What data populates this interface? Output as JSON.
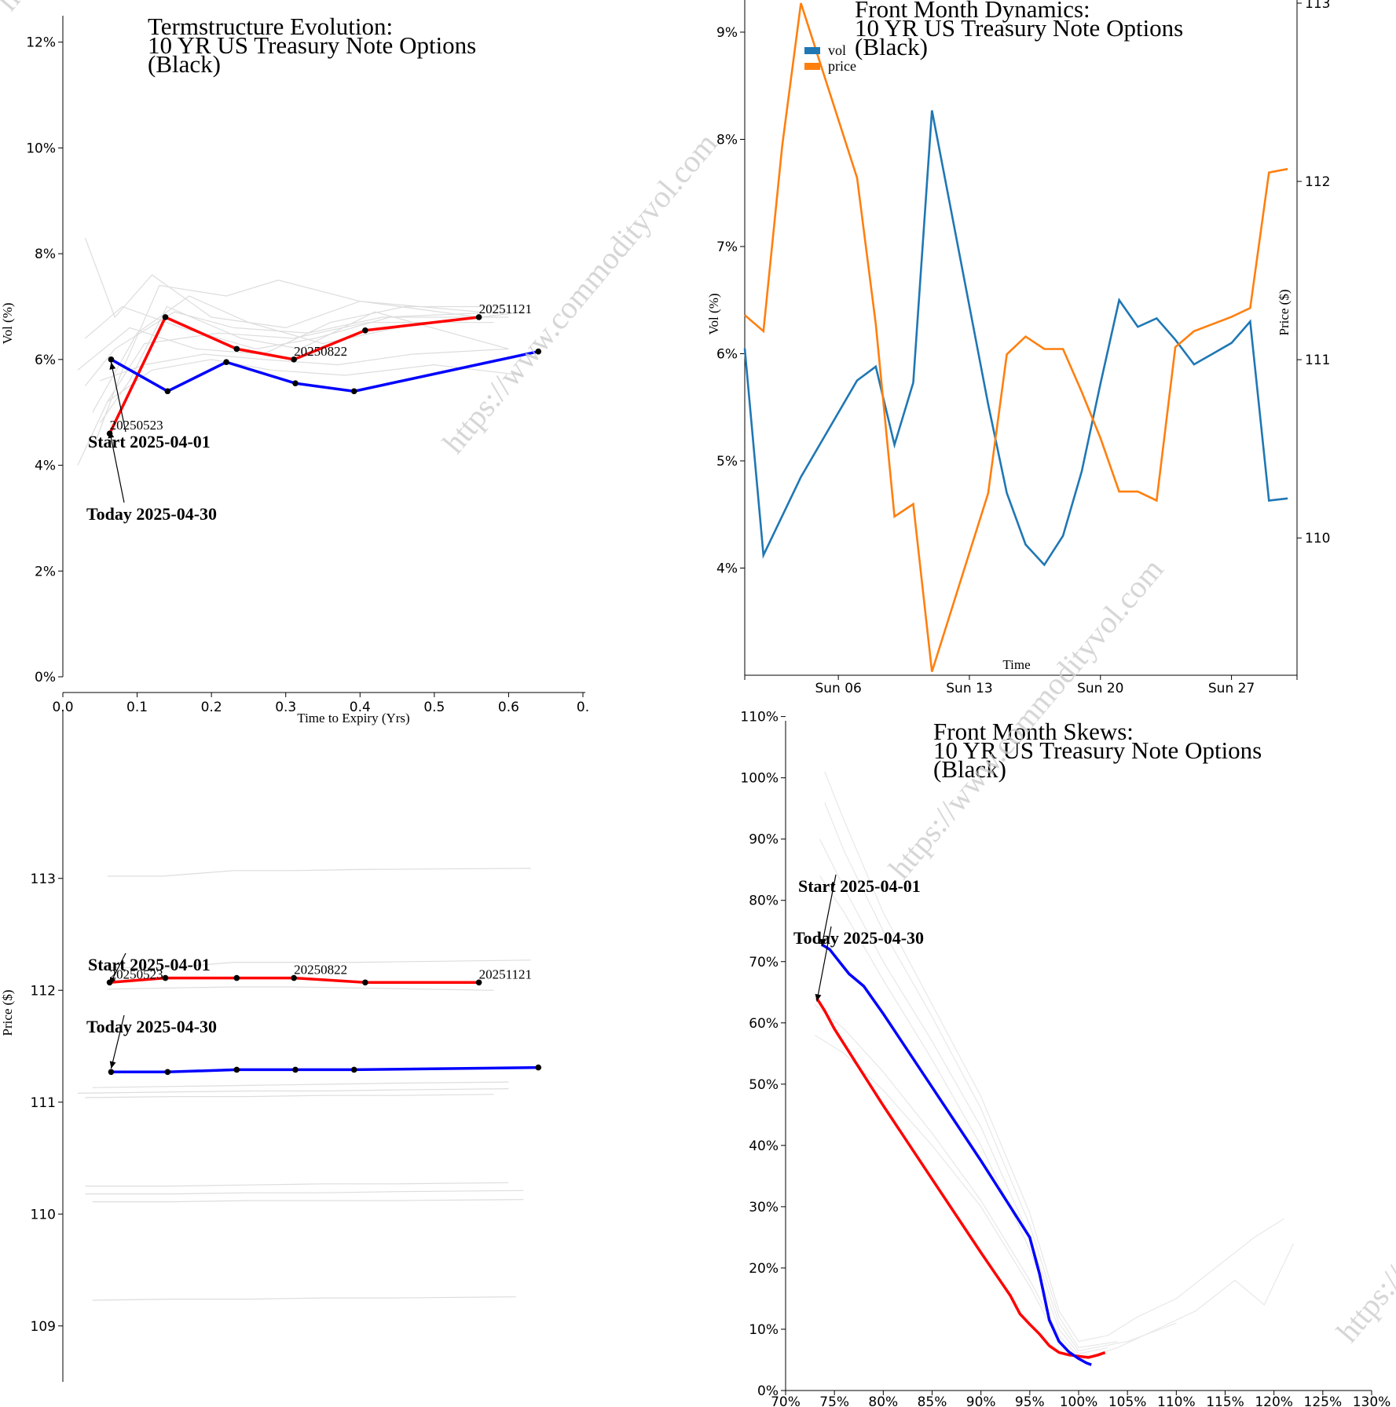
{
  "watermark": {
    "text": "https://www.commodityvol.com",
    "color": "#cccccc"
  },
  "colors": {
    "start": "#ff0000",
    "today": "#0000ff",
    "history": "#dddddd",
    "vol": "#1f77b4",
    "price": "#ff7f0e"
  },
  "chart_data": [
    {
      "id": "termstructure-vol",
      "type": "line",
      "title": [
        "Termstructure Evolution:",
        "10 YR US Treasury Note Options",
        "(Black)"
      ],
      "xlabel": "Time to Expiry (Yrs)",
      "ylabel": "Vol (%)",
      "xlim": [
        0,
        0.7
      ],
      "ylim": [
        0,
        12.5
      ],
      "xticks": [
        0,
        0.1,
        0.2,
        0.3,
        0.4,
        0.5,
        0.6,
        0.7
      ],
      "xtick_labels": [
        "0.0",
        "0.1",
        "0.2",
        "0.3",
        "0.4",
        "0.5",
        "0.6",
        "0."
      ],
      "yticks": [
        0,
        2,
        4,
        6,
        8,
        10,
        12
      ],
      "ytick_labels": [
        "0%",
        "2%",
        "4%",
        "6%",
        "8%",
        "10%",
        "12%"
      ],
      "series": [
        {
          "name": "Start 2025-04-01",
          "role": "start",
          "x": [
            0.063,
            0.138,
            0.234,
            0.311,
            0.407,
            0.56
          ],
          "y": [
            4.6,
            6.8,
            6.2,
            6.0,
            6.55,
            6.8
          ]
        },
        {
          "name": "Today 2025-04-30",
          "role": "today",
          "x": [
            0.065,
            0.141,
            0.22,
            0.313,
            0.392,
            0.64
          ],
          "y": [
            6.0,
            5.4,
            5.95,
            5.55,
            5.4,
            6.15
          ]
        }
      ],
      "history": [
        {
          "x": [
            0.03,
            0.07,
            0.12,
            0.2,
            0.3,
            0.4,
            0.56
          ],
          "y": [
            8.3,
            6.8,
            7.6,
            6.8,
            6.6,
            7.1,
            6.9
          ]
        },
        {
          "x": [
            0.04,
            0.08,
            0.13,
            0.22,
            0.29,
            0.4,
            0.56
          ],
          "y": [
            4.3,
            5.8,
            7.4,
            7.2,
            7.5,
            7.1,
            6.8
          ]
        },
        {
          "x": [
            0.05,
            0.09,
            0.14,
            0.24,
            0.32,
            0.42,
            0.6
          ],
          "y": [
            4.8,
            5.6,
            7.0,
            6.4,
            6.2,
            6.9,
            6.2
          ]
        },
        {
          "x": [
            0.02,
            0.06,
            0.11,
            0.21,
            0.31,
            0.41,
            0.58
          ],
          "y": [
            4.0,
            5.2,
            6.3,
            6.5,
            6.4,
            6.7,
            6.7
          ]
        },
        {
          "x": [
            0.03,
            0.07,
            0.15,
            0.23,
            0.33,
            0.43,
            0.6
          ],
          "y": [
            5.5,
            6.2,
            6.9,
            6.6,
            6.5,
            6.8,
            6.9
          ]
        },
        {
          "x": [
            0.04,
            0.1,
            0.17,
            0.25,
            0.35,
            0.45,
            0.62
          ],
          "y": [
            5.0,
            6.5,
            7.2,
            6.7,
            6.3,
            6.6,
            6.9
          ]
        },
        {
          "x": [
            0.05,
            0.11,
            0.19,
            0.27,
            0.37,
            0.47,
            0.6
          ],
          "y": [
            5.6,
            5.9,
            6.1,
            6.0,
            5.9,
            6.1,
            6.2
          ]
        },
        {
          "x": [
            0.06,
            0.12,
            0.2,
            0.28,
            0.38,
            0.5,
            0.62
          ],
          "y": [
            5.2,
            5.8,
            6.0,
            5.8,
            5.7,
            5.9,
            5.7
          ]
        },
        {
          "x": [
            0.03,
            0.08,
            0.16,
            0.26,
            0.34,
            0.44,
            0.6
          ],
          "y": [
            6.4,
            7.0,
            6.6,
            6.2,
            6.4,
            6.8,
            6.8
          ]
        },
        {
          "x": [
            0.02,
            0.09,
            0.18,
            0.27,
            0.36,
            0.46,
            0.59
          ],
          "y": [
            5.8,
            6.6,
            6.2,
            6.1,
            6.7,
            7.0,
            7.0
          ]
        }
      ],
      "point_labels": [
        {
          "text": "20250523",
          "x": 0.063,
          "y": 4.6
        },
        {
          "text": "20250822",
          "x": 0.311,
          "y": 6.0
        },
        {
          "text": "20251121",
          "x": 0.56,
          "y": 6.8
        }
      ],
      "annotations": [
        {
          "text": "Start 2025-04-01",
          "target_x": 0.065,
          "target_y": 5.95
        },
        {
          "text": "Today 2025-04-30",
          "target_x": 0.063,
          "target_y": 4.65
        }
      ]
    },
    {
      "id": "front-month-dynamics",
      "type": "line",
      "title": [
        "Front Month Dynamics:",
        "10 YR US Treasury Note Options",
        "(Black)"
      ],
      "xlabel": "Time",
      "ylabel": "Vol (%)",
      "ylabel_right": "Price ($)",
      "x_domain_days": [
        1,
        30.5
      ],
      "xticks_days": [
        6,
        13,
        20,
        27
      ],
      "xtick_labels": [
        "Sun 06",
        "Sun 13",
        "Sun 20",
        "Sun 27"
      ],
      "ylim": [
        3.0,
        9.3
      ],
      "yticks": [
        4,
        5,
        6,
        7,
        8,
        9
      ],
      "ytick_labels": [
        "4%",
        "5%",
        "6%",
        "7%",
        "8%",
        "9%"
      ],
      "ylim_right": [
        109.23,
        113.0
      ],
      "yticks_right": [
        110,
        111,
        112,
        113
      ],
      "legend": [
        "vol",
        "price"
      ],
      "series": [
        {
          "name": "vol",
          "axis": "left",
          "x": [
            1,
            2,
            4,
            7,
            8,
            9,
            10,
            11,
            14,
            15,
            16,
            17,
            18,
            19,
            20,
            21,
            22,
            23,
            24,
            25,
            26,
            27,
            28,
            29,
            30
          ],
          "y": [
            6.05,
            4.12,
            4.85,
            5.75,
            5.88,
            5.15,
            5.73,
            8.27,
            5.53,
            4.7,
            4.22,
            4.03,
            4.3,
            4.9,
            5.72,
            6.5,
            6.25,
            6.33,
            6.13,
            5.9,
            6.0,
            6.1,
            6.3,
            4.63,
            4.65
          ]
        },
        {
          "name": "price",
          "axis": "right",
          "x": [
            1,
            2,
            3,
            4,
            7,
            8,
            9,
            10,
            11,
            14,
            15,
            16,
            17,
            18,
            19,
            20,
            21,
            22,
            23,
            24,
            25,
            26,
            27,
            28,
            29,
            30
          ],
          "y": [
            111.25,
            111.16,
            112.2,
            113.0,
            112.02,
            111.2,
            110.12,
            110.19,
            109.25,
            110.25,
            111.03,
            111.13,
            111.06,
            111.06,
            110.82,
            110.56,
            110.26,
            110.26,
            110.21,
            111.07,
            111.16,
            111.2,
            111.24,
            111.29,
            112.05,
            112.07
          ]
        }
      ]
    },
    {
      "id": "termstructure-price",
      "type": "line",
      "ylabel": "Price ($)",
      "xlim": [
        0,
        0.7
      ],
      "ylim": [
        108.5,
        114.5
      ],
      "yticks": [
        109,
        110,
        111,
        112,
        113
      ],
      "ytick_labels": [
        "109",
        "110",
        "111",
        "112",
        "113"
      ],
      "series": [
        {
          "name": "Start 2025-04-01",
          "role": "start",
          "x": [
            0.063,
            0.138,
            0.234,
            0.311,
            0.407,
            0.56
          ],
          "y": [
            112.07,
            112.11,
            112.11,
            112.11,
            112.07,
            112.07
          ]
        },
        {
          "name": "Today 2025-04-30",
          "role": "today",
          "x": [
            0.065,
            0.141,
            0.234,
            0.313,
            0.392,
            0.64
          ],
          "y": [
            111.27,
            111.27,
            111.29,
            111.29,
            111.29,
            111.31
          ]
        }
      ],
      "history": [
        {
          "x": [
            0.06,
            0.135,
            0.23,
            0.31,
            0.4,
            0.63
          ],
          "y": [
            113.02,
            113.02,
            113.07,
            113.07,
            113.08,
            113.09
          ]
        },
        {
          "x": [
            0.06,
            0.14,
            0.23,
            0.31,
            0.4,
            0.63
          ],
          "y": [
            112.2,
            112.2,
            112.25,
            112.25,
            112.25,
            112.27
          ]
        },
        {
          "x": [
            0.06,
            0.14,
            0.23,
            0.31,
            0.4,
            0.58
          ],
          "y": [
            112.01,
            112.02,
            112.03,
            112.03,
            112.02,
            112.0
          ]
        },
        {
          "x": [
            0.04,
            0.14,
            0.25,
            0.35,
            0.45,
            0.6
          ],
          "y": [
            111.13,
            111.14,
            111.15,
            111.16,
            111.17,
            111.18
          ]
        },
        {
          "x": [
            0.02,
            0.14,
            0.25,
            0.35,
            0.45,
            0.6
          ],
          "y": [
            111.08,
            111.09,
            111.1,
            111.1,
            111.11,
            111.12
          ]
        },
        {
          "x": [
            0.03,
            0.15,
            0.25,
            0.35,
            0.45,
            0.58
          ],
          "y": [
            111.04,
            111.05,
            111.05,
            111.06,
            111.06,
            111.07
          ]
        },
        {
          "x": [
            0.03,
            0.15,
            0.25,
            0.35,
            0.45,
            0.6
          ],
          "y": [
            110.25,
            110.25,
            110.26,
            110.27,
            110.27,
            110.28
          ]
        },
        {
          "x": [
            0.03,
            0.15,
            0.25,
            0.35,
            0.45,
            0.62
          ],
          "y": [
            110.18,
            110.18,
            110.19,
            110.19,
            110.2,
            110.21
          ]
        },
        {
          "x": [
            0.04,
            0.15,
            0.25,
            0.35,
            0.45,
            0.62
          ],
          "y": [
            110.11,
            110.11,
            110.12,
            110.12,
            110.12,
            110.13
          ]
        },
        {
          "x": [
            0.04,
            0.15,
            0.25,
            0.35,
            0.45,
            0.61
          ],
          "y": [
            109.23,
            109.24,
            109.24,
            109.25,
            109.25,
            109.26
          ]
        }
      ],
      "point_labels": [
        {
          "text": "20250523",
          "x": 0.063,
          "y": 112.07
        },
        {
          "text": "20250822",
          "x": 0.311,
          "y": 112.11
        },
        {
          "text": "20251121",
          "x": 0.56,
          "y": 112.07
        }
      ],
      "annotations": [
        {
          "text": "Start 2025-04-01",
          "target_x": 0.063,
          "target_y": 112.05
        },
        {
          "text": "Today 2025-04-30",
          "target_x": 0.065,
          "target_y": 111.3
        }
      ]
    },
    {
      "id": "front-month-skews",
      "type": "line",
      "title": [
        "Front Month Skews:",
        "10 YR US Treasury Note Options",
        "(Black)"
      ],
      "xlim": [
        70,
        130
      ],
      "xticks": [
        70,
        75,
        80,
        85,
        90,
        95,
        100,
        105,
        110,
        115,
        120,
        125,
        130
      ],
      "xtick_labels": [
        "70%",
        "75%",
        "80%",
        "85%",
        "90%",
        "95%",
        "100%",
        "105%",
        "110%",
        "115%",
        "120%",
        "125%",
        "130%"
      ],
      "ylim": [
        0,
        112
      ],
      "yticks": [
        0,
        10,
        20,
        30,
        40,
        50,
        60,
        70,
        80,
        90,
        100,
        110
      ],
      "ytick_labels": [
        "0%",
        "10%",
        "20%",
        "30%",
        "40%",
        "50%",
        "60%",
        "70%",
        "80%",
        "90%",
        "100%",
        "110%"
      ],
      "series": [
        {
          "name": "Start 2025-04-01",
          "role": "start",
          "x": [
            73.2,
            74,
            75,
            77,
            80,
            85,
            90,
            93,
            94,
            95,
            96,
            97,
            98,
            99,
            100,
            101,
            102,
            102.7
          ],
          "y": [
            64,
            62,
            59,
            54,
            46.5,
            34.5,
            22.5,
            15.5,
            12.5,
            10.8,
            9.2,
            7.3,
            6.2,
            5.8,
            5.6,
            5.4,
            5.8,
            6.2
          ]
        },
        {
          "name": "Today 2025-04-30",
          "role": "today",
          "x": [
            73.7,
            74.5,
            75.5,
            76.5,
            78,
            80,
            85,
            90,
            94,
            95,
            96,
            97,
            98,
            99,
            100,
            100.8,
            101.3
          ],
          "y": [
            72.8,
            72,
            70,
            68,
            66,
            61.5,
            49.5,
            37.5,
            27.5,
            25,
            19,
            11.5,
            8,
            6.3,
            5.2,
            4.5,
            4.2
          ]
        }
      ],
      "history": [
        {
          "x": [
            74,
            76,
            80,
            85,
            90,
            95,
            98,
            100,
            103,
            106,
            110,
            114,
            118,
            121
          ],
          "y": [
            101,
            93,
            78,
            63,
            48,
            29,
            13,
            8,
            9,
            12,
            15,
            20,
            25,
            28
          ]
        },
        {
          "x": [
            74,
            76,
            80,
            85,
            90,
            95,
            98,
            100,
            104
          ],
          "y": [
            96,
            88,
            75,
            61,
            46,
            27,
            12,
            7,
            8
          ]
        },
        {
          "x": [
            73.5,
            76,
            80,
            85,
            90,
            95,
            98,
            100,
            105,
            110
          ],
          "y": [
            90,
            82,
            70,
            57,
            43,
            25,
            11,
            6.5,
            8,
            11
          ]
        },
        {
          "x": [
            73.5,
            76,
            80,
            85,
            90,
            95,
            98,
            100,
            103
          ],
          "y": [
            84,
            78,
            67,
            54,
            40,
            23,
            10,
            6,
            7
          ]
        },
        {
          "x": [
            73,
            76,
            80,
            85,
            90,
            95,
            98,
            100,
            103
          ],
          "y": [
            63,
            59,
            52,
            42,
            31,
            18,
            9,
            5.5,
            6
          ]
        },
        {
          "x": [
            73,
            76,
            80,
            85,
            90,
            95,
            98,
            100,
            104,
            108,
            112,
            116,
            119,
            122
          ],
          "y": [
            58,
            55,
            49,
            40,
            30,
            17,
            8,
            5,
            7,
            10,
            13,
            18,
            14,
            24
          ]
        }
      ],
      "annotations": [
        {
          "text": "Start 2025-04-01",
          "target_x": 73.7,
          "target_y": 72.5
        },
        {
          "text": "Today 2025-04-30",
          "target_x": 73.2,
          "target_y": 63.5
        }
      ]
    }
  ]
}
